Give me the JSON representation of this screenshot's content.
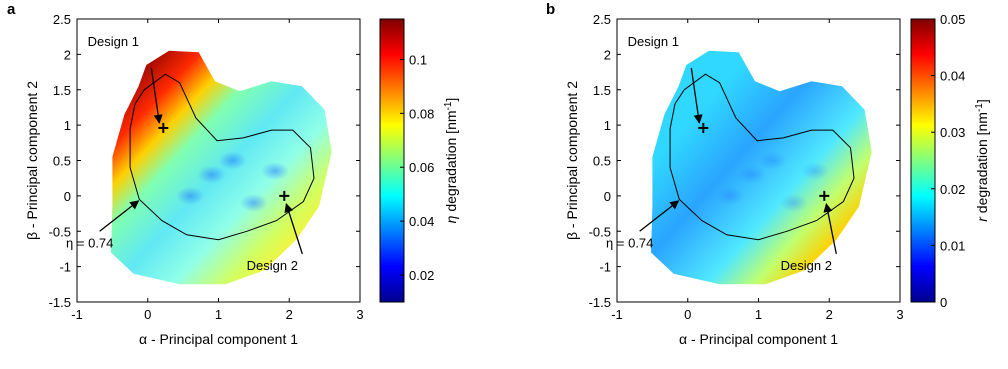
{
  "chart_data": [
    {
      "type": "heatmap",
      "panel_label": "a",
      "xlabel": "α - Principal component 1",
      "ylabel": "β - Principal component 2",
      "xlim": [
        -1,
        3
      ],
      "ylim": [
        -1.5,
        2.5
      ],
      "x_ticks": [
        -1,
        0,
        1,
        2,
        3
      ],
      "y_ticks": [
        -1.5,
        -1,
        -0.5,
        0,
        0.5,
        1,
        1.5,
        2,
        2.5
      ],
      "colorbar": {
        "label_symbol": "η",
        "label_rest": " degradation [nm",
        "label_sup": "-1",
        "label_end": "]",
        "range": [
          0.01,
          0.115
        ],
        "ticks": [
          0.02,
          0.04,
          0.06,
          0.08,
          0.1
        ],
        "tick_labels": [
          "0.02",
          "0.04",
          "0.06",
          "0.08",
          "0.1"
        ],
        "colormap": "jet"
      },
      "points": [
        {
          "name": "Design 1",
          "x": 0.22,
          "y": 0.96
        },
        {
          "name": "Design 2",
          "x": 1.93,
          "y": 0.0
        }
      ],
      "contour_label": "η = 0.74",
      "hot_region": "upper-left"
    },
    {
      "type": "heatmap",
      "panel_label": "b",
      "xlabel": "α - Principal component 1",
      "ylabel": "β - Principal component 2",
      "xlim": [
        -1,
        3
      ],
      "ylim": [
        -1.5,
        2.5
      ],
      "x_ticks": [
        -1,
        0,
        1,
        2,
        3
      ],
      "y_ticks": [
        -1.5,
        -1,
        -0.5,
        0,
        0.5,
        1,
        1.5,
        2,
        2.5
      ],
      "colorbar": {
        "label_symbol": "r",
        "label_rest": " degradation [nm",
        "label_sup": "-1",
        "label_end": "]",
        "range": [
          0,
          0.05
        ],
        "ticks": [
          0,
          0.01,
          0.02,
          0.03,
          0.04,
          0.05
        ],
        "tick_labels": [
          "0",
          "0.01",
          "0.02",
          "0.03",
          "0.04",
          "0.05"
        ],
        "colormap": "jet"
      },
      "points": [
        {
          "name": "Design 1",
          "x": 0.22,
          "y": 0.96
        },
        {
          "name": "Design 2",
          "x": 1.93,
          "y": 0.0
        }
      ],
      "contour_label": "η = 0.74",
      "hot_region": "lower-right"
    }
  ]
}
